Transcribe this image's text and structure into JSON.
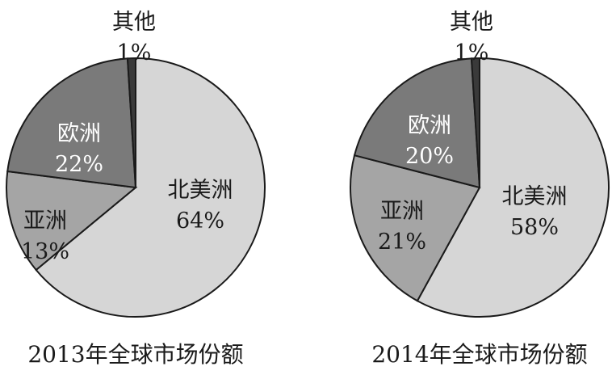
{
  "chart_data": [
    {
      "type": "pie",
      "title": "2013年全球市场份额",
      "slices": [
        {
          "label": "北美洲",
          "value": 64,
          "value_text": "64%",
          "color": "#d6d6d6"
        },
        {
          "label": "亚洲",
          "value": 13,
          "value_text": "13%",
          "color": "#a5a5a5"
        },
        {
          "label": "欧洲",
          "value": 22,
          "value_text": "22%",
          "color": "#7a7a7a"
        },
        {
          "label": "其他",
          "value": 1,
          "value_text": "1%",
          "color": "#3a3a3a"
        }
      ]
    },
    {
      "type": "pie",
      "title": "2014年全球市场份额",
      "slices": [
        {
          "label": "北美洲",
          "value": 58,
          "value_text": "58%",
          "color": "#d6d6d6"
        },
        {
          "label": "亚洲",
          "value": 21,
          "value_text": "21%",
          "color": "#a5a5a5"
        },
        {
          "label": "欧洲",
          "value": 20,
          "value_text": "20%",
          "color": "#7a7a7a"
        },
        {
          "label": "其他",
          "value": 1,
          "value_text": "1%",
          "color": "#3a3a3a"
        }
      ]
    }
  ],
  "colors": {
    "outline": "#1a1a1a",
    "label_dark_text": "#1a1a1a",
    "label_light_text": "#ffffff"
  }
}
